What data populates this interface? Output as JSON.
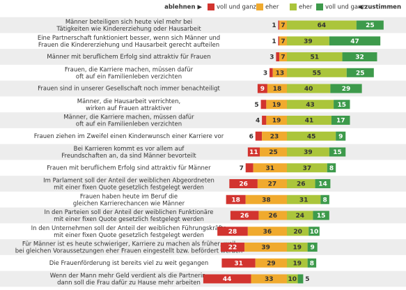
{
  "chart_data": {
    "type": "diverging-bar",
    "legend_left": "ablehnen ▶",
    "legend_right": "◀ zustimmen",
    "categories": [
      "Männer beteiligen sich heute viel mehr bei Tätigkeiten wie Kindererziehung oder Hausarbeit",
      "Eine Partnerschaft funktioniert besser, wenn sich Männer und Frauen die Kindererziehung und Hausarbeit gerecht aufteilen",
      "Männer mit beruflichem Erfolg sind attraktiv für Frauen",
      "Frauen, die Karriere machen, müssen dafür oft auf ein Familienleben verzichten",
      "Frauen sind in unserer Gesellschaft noch immer benachteiligt",
      "Männer, die Hausarbeit verrichten, wirken auf Frauen attraktiver",
      "Männer, die Karriere machen, müssen dafür oft auf ein Familienleben verzichten",
      "Frauen ziehen im Zweifel einen Kinderwunsch einer Karriere vor",
      "Bei Karrieren kommt es vor allem auf Freundschaften an, da sind Männer bevorteilt",
      "Frauen mit beruflichem Erfolg sind attraktiv für Männer",
      "Im Parlament soll der Anteil der weiblichen Abgeordneten mit einer fixen Quote gesetzlich festgelegt werden",
      "Frauen haben heute im Beruf die gleichen Karrierechancen wie Männer",
      "In den Parteien soll der Anteil der weiblichen Funktionäre mit einer fixen Quote gesetzlich festgelegt werden",
      "In den Unternehmen soll der Anteil der weiblichen Führungskräfte mit einer fixen Quote gesetzlich festgelegt werden",
      "Für Männer ist es heute schwieriger, Karriere zu machen als früher, weil bei gleichen Voraussetzungen eher Frauen eingestellt bzw. befördert werden",
      "Die Frauenförderung ist bereits viel zu weit gegangen",
      "Wenn der Mann mehr Geld verdient als die Partnerin, dann soll die Frau dafür zu Hause mehr arbeiten"
    ],
    "series": [
      {
        "name": "voll und ganz",
        "color": "#d2342f",
        "values": [
          1,
          1,
          3,
          3,
          9,
          5,
          4,
          6,
          11,
          7,
          26,
          18,
          26,
          28,
          22,
          31,
          44
        ]
      },
      {
        "name": "eher",
        "color": "#f0aa2e",
        "values": [
          7,
          7,
          7,
          13,
          18,
          19,
          19,
          23,
          25,
          31,
          27,
          38,
          26,
          36,
          39,
          29,
          33
        ]
      },
      {
        "name": "eher",
        "color": "#abc53b",
        "values": [
          64,
          39,
          51,
          55,
          40,
          43,
          41,
          45,
          39,
          37,
          26,
          31,
          24,
          20,
          19,
          19,
          10
        ]
      },
      {
        "name": "voll und ganz",
        "color": "#3d9a4b",
        "values": [
          25,
          47,
          32,
          25,
          29,
          15,
          17,
          9,
          15,
          8,
          14,
          8,
          15,
          10,
          9,
          8,
          5
        ]
      }
    ]
  }
}
